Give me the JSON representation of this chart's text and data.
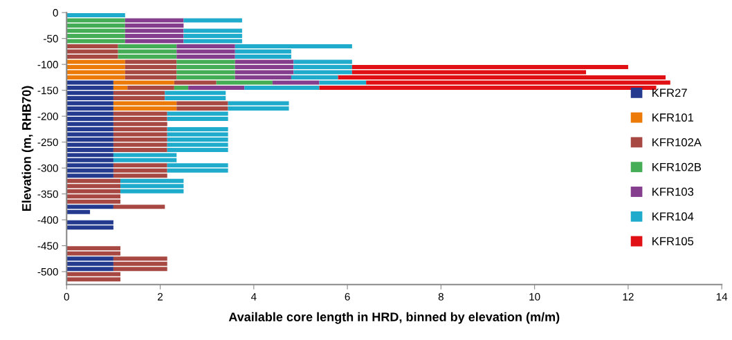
{
  "chart_data": {
    "type": "bar",
    "orientation": "horizontal",
    "stacked": true,
    "xlabel": "Available core length in HRD, binned by elevation (m/m)",
    "ylabel": "Elevation (m, RHB70)",
    "x": [
      -5,
      -15,
      -25,
      -35,
      -45,
      -55,
      -65,
      -75,
      -85,
      -95,
      -105,
      -115,
      -125,
      -135,
      -145,
      -155,
      -165,
      -175,
      -185,
      -195,
      -205,
      -215,
      -225,
      -235,
      -245,
      -255,
      -265,
      -275,
      -285,
      -295,
      -305,
      -315,
      -325,
      -335,
      -345,
      -355,
      -365,
      -375,
      -385,
      -395,
      -405,
      -415,
      -425,
      -435,
      -445,
      -455,
      -465,
      -475,
      -485,
      -495,
      -505,
      -515
    ],
    "series": [
      {
        "name": "KFR27",
        "color": "#233a8f",
        "values": [
          null,
          null,
          null,
          null,
          null,
          null,
          null,
          null,
          null,
          null,
          null,
          null,
          null,
          1.0,
          1.0,
          1.0,
          1.0,
          1.0,
          1.0,
          1.0,
          1.0,
          1.0,
          1.0,
          1.0,
          1.0,
          1.0,
          1.0,
          1.0,
          1.0,
          1.0,
          1.0,
          1.0,
          null,
          null,
          null,
          null,
          null,
          1.0,
          0.5,
          null,
          1.0,
          1.0,
          null,
          null,
          null,
          null,
          null,
          1.0,
          1.0,
          1.0,
          null,
          null
        ]
      },
      {
        "name": "KFR101",
        "color": "#ec7a08",
        "values": [
          null,
          null,
          null,
          null,
          null,
          null,
          null,
          null,
          null,
          1.25,
          1.25,
          1.25,
          1.25,
          1.3,
          0.3,
          null,
          null,
          1.35,
          1.35,
          null,
          null,
          null,
          null,
          null,
          null,
          null,
          null,
          null,
          null,
          null,
          null,
          null,
          null,
          null,
          null,
          null,
          null,
          null,
          null,
          null,
          null,
          null,
          null,
          null,
          null,
          null,
          null,
          null,
          null,
          null,
          null,
          null
        ]
      },
      {
        "name": "KFR102A",
        "color": "#a84842",
        "values": [
          null,
          null,
          null,
          null,
          null,
          null,
          1.1,
          1.1,
          1.1,
          1.1,
          1.1,
          1.1,
          1.1,
          0.9,
          1.0,
          1.1,
          1.1,
          1.1,
          1.1,
          1.15,
          1.15,
          1.15,
          1.15,
          1.15,
          1.15,
          1.15,
          1.15,
          null,
          null,
          1.15,
          1.15,
          1.15,
          1.15,
          1.15,
          1.15,
          1.15,
          1.15,
          1.1,
          null,
          null,
          null,
          null,
          null,
          null,
          null,
          1.15,
          1.15,
          1.15,
          1.15,
          1.15,
          1.15,
          1.15
        ]
      },
      {
        "name": "KFR102B",
        "color": "#45ad55",
        "values": [
          null,
          1.25,
          1.25,
          1.25,
          1.25,
          1.25,
          1.25,
          1.25,
          1.25,
          1.25,
          1.25,
          1.25,
          1.25,
          1.2,
          0.3,
          null,
          null,
          null,
          null,
          null,
          null,
          null,
          null,
          null,
          null,
          null,
          null,
          null,
          null,
          null,
          null,
          null,
          null,
          null,
          null,
          null,
          null,
          null,
          null,
          null,
          null,
          null,
          null,
          null,
          null,
          null,
          null,
          null,
          null,
          null,
          null,
          null
        ]
      },
      {
        "name": "KFR103",
        "color": "#853e8e",
        "values": [
          null,
          1.25,
          1.25,
          1.25,
          1.25,
          1.25,
          1.25,
          1.25,
          1.25,
          1.25,
          1.25,
          1.25,
          1.2,
          1.0,
          1.2,
          null,
          null,
          null,
          null,
          null,
          null,
          null,
          null,
          null,
          null,
          null,
          null,
          null,
          null,
          null,
          null,
          null,
          null,
          null,
          null,
          null,
          null,
          null,
          null,
          null,
          null,
          null,
          null,
          null,
          null,
          null,
          null,
          null,
          null,
          null,
          null,
          null
        ]
      },
      {
        "name": "KFR104",
        "color": "#1eabcc",
        "values": [
          1.25,
          1.25,
          null,
          1.25,
          1.25,
          1.25,
          2.5,
          1.2,
          1.2,
          1.25,
          1.25,
          1.25,
          1.0,
          1.0,
          1.6,
          1.3,
          1.3,
          1.3,
          1.3,
          1.3,
          1.3,
          null,
          1.3,
          1.3,
          1.3,
          1.3,
          1.3,
          1.35,
          1.35,
          1.3,
          1.3,
          null,
          1.35,
          1.35,
          1.35,
          null,
          null,
          null,
          null,
          null,
          null,
          null,
          null,
          null,
          null,
          null,
          null,
          null,
          null,
          null,
          null,
          null
        ]
      },
      {
        "name": "KFR105",
        "color": "#e01014",
        "values": [
          null,
          null,
          null,
          null,
          null,
          null,
          null,
          null,
          null,
          null,
          5.9,
          5.0,
          7.0,
          6.5,
          7.2,
          null,
          null,
          null,
          null,
          null,
          null,
          null,
          null,
          null,
          null,
          null,
          null,
          null,
          null,
          null,
          null,
          null,
          null,
          null,
          null,
          null,
          null,
          null,
          null,
          null,
          null,
          null,
          null,
          null,
          null,
          null,
          null,
          null,
          null,
          null,
          null,
          null
        ]
      }
    ],
    "xlim": [
      0,
      14
    ],
    "xticks": [
      0,
      2,
      4,
      6,
      8,
      10,
      12,
      14
    ],
    "ylim": [
      -525,
      0
    ],
    "yticks": [
      0,
      -50,
      -100,
      -150,
      -200,
      -250,
      -300,
      -350,
      -400,
      -450,
      -500
    ],
    "grid": false,
    "legend": "right"
  }
}
